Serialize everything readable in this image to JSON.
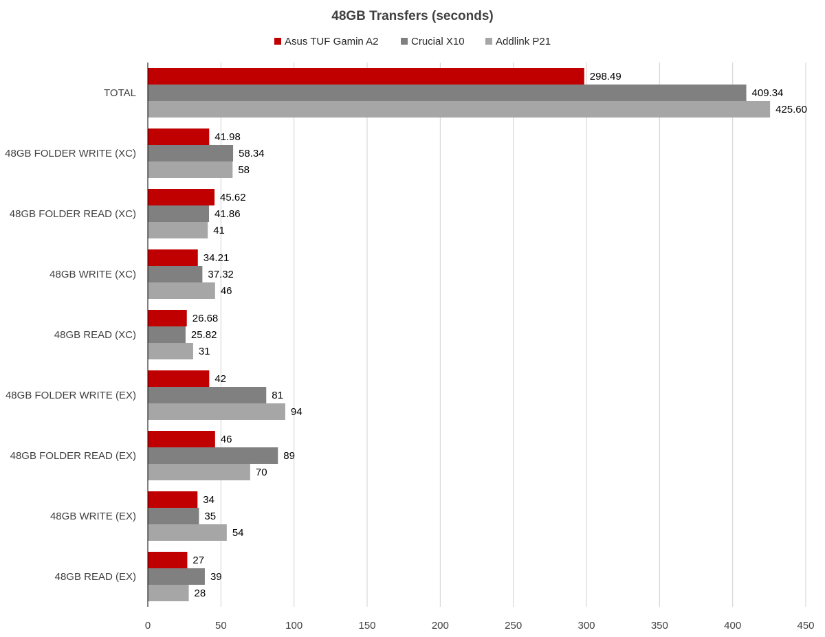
{
  "chart_data": {
    "type": "bar",
    "orientation": "horizontal",
    "title": "48GB Transfers (seconds)",
    "legend_position": "top",
    "grid": true,
    "xlim": [
      0,
      450
    ],
    "x_ticks": [
      "0",
      "50",
      "100",
      "150",
      "200",
      "250",
      "300",
      "350",
      "400",
      "450"
    ],
    "categories": [
      "TOTAL",
      "48GB FOLDER WRITE (XC)",
      "48GB FOLDER READ (XC)",
      "48GB WRITE (XC)",
      "48GB READ (XC)",
      "48GB FOLDER WRITE (EX)",
      "48GB FOLDER READ (EX)",
      "48GB WRITE (EX)",
      "48GB READ (EX)"
    ],
    "series": [
      {
        "name": "Asus TUF Gamin A2",
        "color": "#c00000",
        "values": [
          298.49,
          41.98,
          45.62,
          34.21,
          26.68,
          42,
          46,
          34,
          27
        ],
        "labels": [
          "298.49",
          "41.98",
          "45.62",
          "34.21",
          "26.68",
          "42",
          "46",
          "34",
          "27"
        ]
      },
      {
        "name": "Crucial X10",
        "color": "#808080",
        "values": [
          409.34,
          58.34,
          41.86,
          37.32,
          25.82,
          81,
          89,
          35,
          39
        ],
        "labels": [
          "409.34",
          "58.34",
          "41.86",
          "37.32",
          "25.82",
          "81",
          "89",
          "35",
          "39"
        ]
      },
      {
        "name": "Addlink P21",
        "color": "#a6a6a6",
        "values": [
          425.6,
          58,
          41,
          46,
          31,
          94,
          70,
          54,
          28
        ],
        "labels": [
          "425.60",
          "58",
          "41",
          "46",
          "31",
          "94",
          "70",
          "54",
          "28"
        ]
      }
    ]
  }
}
